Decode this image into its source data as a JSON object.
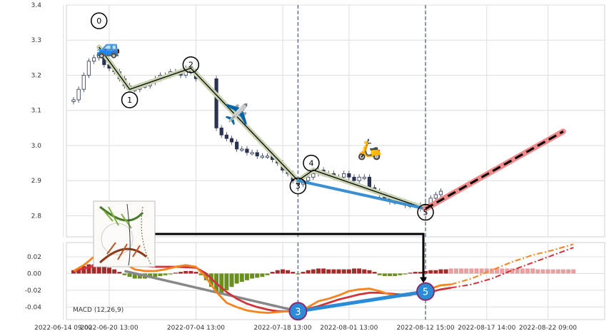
{
  "chart_data": [
    {
      "type": "candlestick",
      "panel": "price",
      "ylim": [
        2.74,
        3.4
      ],
      "y_ticks": [
        "3.4",
        "3.3",
        "3.2",
        "3.1",
        "3.0",
        "2.9",
        "2.8"
      ],
      "y_tick_values": [
        3.4,
        3.3,
        3.2,
        3.1,
        3.0,
        2.9,
        2.8
      ],
      "grid": true,
      "candles": [
        {
          "t": 0,
          "c": 3.13
        },
        {
          "t": 0.5,
          "c": 3.16
        },
        {
          "t": 1,
          "c": 3.2
        },
        {
          "t": 1.5,
          "c": 3.24
        },
        {
          "t": 2,
          "c": 3.25
        },
        {
          "t": 2.5,
          "c": 3.27
        },
        {
          "t": 3,
          "c": 3.23
        },
        {
          "t": 3.5,
          "c": 3.22
        },
        {
          "t": 4,
          "c": 3.21
        },
        {
          "t": 4.5,
          "c": 3.19
        },
        {
          "t": 5,
          "c": 3.17
        },
        {
          "t": 5.5,
          "c": 3.16
        },
        {
          "t": 6,
          "c": 3.16
        },
        {
          "t": 6.5,
          "c": 3.17
        },
        {
          "t": 7,
          "c": 3.17
        },
        {
          "t": 7.5,
          "c": 3.18
        },
        {
          "t": 8,
          "c": 3.19
        },
        {
          "t": 8.5,
          "c": 3.2
        },
        {
          "t": 9,
          "c": 3.2
        },
        {
          "t": 9.5,
          "c": 3.21
        },
        {
          "t": 10,
          "c": 3.21
        },
        {
          "t": 10.5,
          "c": 3.2
        },
        {
          "t": 11,
          "c": 3.22
        },
        {
          "t": 11.5,
          "c": 3.21
        },
        {
          "t": 12,
          "c": 3.19
        },
        {
          "t": 12.5,
          "c": 3.19
        },
        {
          "t": 14,
          "c": 3.05
        },
        {
          "t": 14.5,
          "c": 3.03
        },
        {
          "t": 15,
          "c": 3.02
        },
        {
          "t": 15.5,
          "c": 3.01
        },
        {
          "t": 16,
          "c": 2.99
        },
        {
          "t": 16.5,
          "c": 2.99
        },
        {
          "t": 17,
          "c": 2.98
        },
        {
          "t": 17.5,
          "c": 2.98
        },
        {
          "t": 18,
          "c": 2.97
        },
        {
          "t": 18.5,
          "c": 2.97
        },
        {
          "t": 19,
          "c": 2.97
        },
        {
          "t": 19.5,
          "c": 2.96
        },
        {
          "t": 20,
          "c": 2.95
        },
        {
          "t": 20.5,
          "c": 2.93
        },
        {
          "t": 21,
          "c": 2.92
        },
        {
          "t": 21.5,
          "c": 2.9
        },
        {
          "t": 22,
          "c": 2.89
        },
        {
          "t": 22.5,
          "c": 2.9
        },
        {
          "t": 23,
          "c": 2.91
        },
        {
          "t": 23.5,
          "c": 2.92
        },
        {
          "t": 24,
          "c": 2.93
        },
        {
          "t": 24.5,
          "c": 2.92
        },
        {
          "t": 25,
          "c": 2.92
        },
        {
          "t": 25.5,
          "c": 2.91
        },
        {
          "t": 26,
          "c": 2.91
        },
        {
          "t": 26.5,
          "c": 2.92
        },
        {
          "t": 27,
          "c": 2.91
        },
        {
          "t": 27.5,
          "c": 2.9
        },
        {
          "t": 28,
          "c": 2.91
        },
        {
          "t": 28.5,
          "c": 2.91
        },
        {
          "t": 29,
          "c": 2.88
        },
        {
          "t": 29.5,
          "c": 2.87
        },
        {
          "t": 30,
          "c": 2.86
        },
        {
          "t": 30.5,
          "c": 2.85
        },
        {
          "t": 31,
          "c": 2.84
        },
        {
          "t": 31.5,
          "c": 2.84
        },
        {
          "t": 32,
          "c": 2.84
        },
        {
          "t": 32.5,
          "c": 2.83
        },
        {
          "t": 33,
          "c": 2.83
        },
        {
          "t": 33.5,
          "c": 2.83
        },
        {
          "t": 34,
          "c": 2.82
        },
        {
          "t": 34.5,
          "c": 2.83
        },
        {
          "t": 35,
          "c": 2.85
        },
        {
          "t": 35.5,
          "c": 2.86
        },
        {
          "t": 36,
          "c": 2.87
        }
      ],
      "wave_points": [
        {
          "label": "0",
          "t": 2.5,
          "y": 3.28
        },
        {
          "label": "1",
          "t": 5.5,
          "y": 3.16
        },
        {
          "label": "2",
          "t": 11.5,
          "y": 3.22
        },
        {
          "label": "3",
          "t": 22,
          "y": 2.9
        },
        {
          "label": "4",
          "t": 23.5,
          "y": 2.93
        },
        {
          "label": "5",
          "t": 34.5,
          "y": 2.82
        }
      ],
      "wave_label_positions": [
        {
          "label": "0",
          "t": 2.5,
          "y": 3.355
        },
        {
          "label": "1",
          "t": 5.5,
          "y": 3.13
        },
        {
          "label": "2",
          "t": 11.5,
          "y": 3.23
        },
        {
          "label": "3",
          "t": 22,
          "y": 2.885
        },
        {
          "label": "4",
          "t": 23.3,
          "y": 2.95
        },
        {
          "label": "5",
          "t": 34.5,
          "y": 2.81
        }
      ],
      "trend_3_5": [
        {
          "t": 22,
          "y": 2.9
        },
        {
          "t": 34.5,
          "y": 2.82
        }
      ],
      "projection": [
        {
          "t": 34.5,
          "y": 2.82
        },
        {
          "t": 48,
          "y": 3.04
        }
      ],
      "vlines_t": [
        22,
        34.5
      ],
      "icons": [
        {
          "name": "car-icon",
          "glyph": "🚙",
          "t": 3.4,
          "y": 3.26
        },
        {
          "name": "airplane-icon",
          "glyph": "✈️",
          "t": 16,
          "y": 3.07
        },
        {
          "name": "scooter-icon",
          "glyph": "🛵",
          "t": 29,
          "y": 2.97
        }
      ],
      "colors": {
        "wave_line": "#000000",
        "wave_halo": "#c8d3b0",
        "trend": "#3a8fd3",
        "projection_halo": "#f08a8a",
        "projection_line": "#000000",
        "candle_up": "#ffffff",
        "candle_down": "#2a3350"
      }
    },
    {
      "type": "macd",
      "panel": "indicator",
      "legend": "MACD (12,26,9)",
      "ylim": [
        -0.055,
        0.037
      ],
      "y_ticks": [
        "0.02",
        "0.00",
        "-0.02",
        "-0.04"
      ],
      "y_tick_values": [
        0.02,
        0.0,
        -0.02,
        -0.04
      ],
      "x_ticks": [
        "2022-06-14 09:00",
        "2022-06-20 13:00",
        "2022-07-04 13:00",
        "2022-07-18 13:00",
        "2022-08-01 13:00",
        "2022-08-12 15:00",
        "2022-08-17 14:00",
        "2022-08-22 09:00"
      ],
      "x_tick_t": [
        -1,
        3.5,
        12,
        20.5,
        27,
        34.5,
        40.5,
        46.5
      ],
      "macd_line": [
        {
          "t": 0,
          "y": 0.003
        },
        {
          "t": 1,
          "y": 0.01
        },
        {
          "t": 2,
          "y": 0.02
        },
        {
          "t": 3,
          "y": 0.023
        },
        {
          "t": 4,
          "y": 0.02
        },
        {
          "t": 5,
          "y": 0.012
        },
        {
          "t": 6,
          "y": 0.005
        },
        {
          "t": 7,
          "y": 0.003
        },
        {
          "t": 8,
          "y": 0.003
        },
        {
          "t": 9,
          "y": 0.005
        },
        {
          "t": 10,
          "y": 0.008
        },
        {
          "t": 11,
          "y": 0.01
        },
        {
          "t": 12,
          "y": 0.008
        },
        {
          "t": 13,
          "y": -0.005
        },
        {
          "t": 14,
          "y": -0.022
        },
        {
          "t": 15,
          "y": -0.035
        },
        {
          "t": 16,
          "y": -0.04
        },
        {
          "t": 17,
          "y": -0.044
        },
        {
          "t": 18,
          "y": -0.046
        },
        {
          "t": 19,
          "y": -0.047
        },
        {
          "t": 20,
          "y": -0.046
        },
        {
          "t": 21,
          "y": -0.045
        },
        {
          "t": 22,
          "y": -0.045
        },
        {
          "t": 23,
          "y": -0.04
        },
        {
          "t": 24,
          "y": -0.033
        },
        {
          "t": 25,
          "y": -0.03
        },
        {
          "t": 26,
          "y": -0.026
        },
        {
          "t": 27,
          "y": -0.021
        },
        {
          "t": 28,
          "y": -0.019
        },
        {
          "t": 29,
          "y": -0.018
        },
        {
          "t": 30,
          "y": -0.021
        },
        {
          "t": 31,
          "y": -0.025
        },
        {
          "t": 32,
          "y": -0.027
        },
        {
          "t": 33,
          "y": -0.026
        },
        {
          "t": 34,
          "y": -0.022
        },
        {
          "t": 35,
          "y": -0.018
        },
        {
          "t": 36,
          "y": -0.014
        },
        {
          "t": 37,
          "y": -0.013
        }
      ],
      "signal_line": [
        {
          "t": 0,
          "y": 0.003
        },
        {
          "t": 2,
          "y": 0.009
        },
        {
          "t": 4,
          "y": 0.012
        },
        {
          "t": 6,
          "y": 0.01
        },
        {
          "t": 8,
          "y": 0.008
        },
        {
          "t": 10,
          "y": 0.008
        },
        {
          "t": 12,
          "y": 0.007
        },
        {
          "t": 13,
          "y": 0.0
        },
        {
          "t": 14,
          "y": -0.012
        },
        {
          "t": 15,
          "y": -0.022
        },
        {
          "t": 16,
          "y": -0.03
        },
        {
          "t": 17,
          "y": -0.036
        },
        {
          "t": 18,
          "y": -0.04
        },
        {
          "t": 19,
          "y": -0.043
        },
        {
          "t": 20,
          "y": -0.045
        },
        {
          "t": 21,
          "y": -0.045
        },
        {
          "t": 22,
          "y": -0.044
        },
        {
          "t": 23,
          "y": -0.042
        },
        {
          "t": 24,
          "y": -0.039
        },
        {
          "t": 25,
          "y": -0.035
        },
        {
          "t": 26,
          "y": -0.031
        },
        {
          "t": 27,
          "y": -0.028
        },
        {
          "t": 28,
          "y": -0.025
        },
        {
          "t": 29,
          "y": -0.023
        },
        {
          "t": 30,
          "y": -0.023
        },
        {
          "t": 31,
          "y": -0.024
        },
        {
          "t": 32,
          "y": -0.025
        },
        {
          "t": 33,
          "y": -0.025
        },
        {
          "t": 34,
          "y": -0.024
        },
        {
          "t": 35,
          "y": -0.022
        },
        {
          "t": 36,
          "y": -0.019
        },
        {
          "t": 37,
          "y": -0.017
        }
      ],
      "macd_projection": [
        {
          "t": 37,
          "y": -0.013
        },
        {
          "t": 39,
          "y": -0.006
        },
        {
          "t": 41,
          "y": 0.004
        },
        {
          "t": 43,
          "y": 0.014
        },
        {
          "t": 45,
          "y": 0.022
        },
        {
          "t": 47,
          "y": 0.028
        },
        {
          "t": 49,
          "y": 0.035
        }
      ],
      "signal_projection": [
        {
          "t": 37,
          "y": -0.017
        },
        {
          "t": 39,
          "y": -0.013
        },
        {
          "t": 41,
          "y": -0.006
        },
        {
          "t": 43,
          "y": 0.004
        },
        {
          "t": 45,
          "y": 0.013
        },
        {
          "t": 47,
          "y": 0.022
        },
        {
          "t": 49,
          "y": 0.031
        }
      ],
      "histogram": [
        {
          "t": 0,
          "v": 0.004
        },
        {
          "t": 0.5,
          "v": 0.006
        },
        {
          "t": 1,
          "v": 0.009
        },
        {
          "t": 1.5,
          "v": 0.011
        },
        {
          "t": 2,
          "v": 0.011
        },
        {
          "t": 2.5,
          "v": 0.01
        },
        {
          "t": 3,
          "v": 0.009
        },
        {
          "t": 3.5,
          "v": 0.007
        },
        {
          "t": 4,
          "v": 0.005
        },
        {
          "t": 4.5,
          "v": 0.002
        },
        {
          "t": 5,
          "v": -0.002
        },
        {
          "t": 5.5,
          "v": -0.004
        },
        {
          "t": 6,
          "v": -0.006
        },
        {
          "t": 6.5,
          "v": -0.006
        },
        {
          "t": 7,
          "v": -0.006
        },
        {
          "t": 7.5,
          "v": -0.005
        },
        {
          "t": 8,
          "v": -0.004
        },
        {
          "t": 8.5,
          "v": -0.003
        },
        {
          "t": 9,
          "v": -0.002
        },
        {
          "t": 9.5,
          "v": -0.001
        },
        {
          "t": 10,
          "v": 0.001
        },
        {
          "t": 10.5,
          "v": 0.002
        },
        {
          "t": 11,
          "v": 0.003
        },
        {
          "t": 11.5,
          "v": 0.003
        },
        {
          "t": 12,
          "v": 0.002
        },
        {
          "t": 12.5,
          "v": -0.002
        },
        {
          "t": 13,
          "v": -0.008
        },
        {
          "t": 13.5,
          "v": -0.016
        },
        {
          "t": 14,
          "v": -0.022
        },
        {
          "t": 14.5,
          "v": -0.024
        },
        {
          "t": 15,
          "v": -0.02
        },
        {
          "t": 15.5,
          "v": -0.016
        },
        {
          "t": 16,
          "v": -0.012
        },
        {
          "t": 16.5,
          "v": -0.01
        },
        {
          "t": 17,
          "v": -0.008
        },
        {
          "t": 17.5,
          "v": -0.006
        },
        {
          "t": 18,
          "v": -0.005
        },
        {
          "t": 18.5,
          "v": -0.004
        },
        {
          "t": 19,
          "v": -0.002
        },
        {
          "t": 19.5,
          "v": 0.002
        },
        {
          "t": 20,
          "v": 0.004
        },
        {
          "t": 20.5,
          "v": 0.005
        },
        {
          "t": 21,
          "v": 0.004
        },
        {
          "t": 21.5,
          "v": 0.002
        },
        {
          "t": 22,
          "v": -0.001
        },
        {
          "t": 22.5,
          "v": 0.002
        },
        {
          "t": 23,
          "v": 0.004
        },
        {
          "t": 23.5,
          "v": 0.005
        },
        {
          "t": 24,
          "v": 0.006
        },
        {
          "t": 24.5,
          "v": 0.006
        },
        {
          "t": 25,
          "v": 0.005
        },
        {
          "t": 25.5,
          "v": 0.005
        },
        {
          "t": 26,
          "v": 0.005
        },
        {
          "t": 26.5,
          "v": 0.005
        },
        {
          "t": 27,
          "v": 0.005
        },
        {
          "t": 27.5,
          "v": 0.006
        },
        {
          "t": 28,
          "v": 0.006
        },
        {
          "t": 28.5,
          "v": 0.005
        },
        {
          "t": 29,
          "v": 0.004
        },
        {
          "t": 29.5,
          "v": 0.002
        },
        {
          "t": 30,
          "v": -0.002
        },
        {
          "t": 30.5,
          "v": -0.003
        },
        {
          "t": 31,
          "v": -0.003
        },
        {
          "t": 31.5,
          "v": -0.003
        },
        {
          "t": 32,
          "v": -0.002
        },
        {
          "t": 32.5,
          "v": -0.001
        },
        {
          "t": 33,
          "v": 0.001
        },
        {
          "t": 33.5,
          "v": 0.002
        },
        {
          "t": 34,
          "v": 0.002
        },
        {
          "t": 34.5,
          "v": 0.003
        },
        {
          "t": 35,
          "v": 0.004
        },
        {
          "t": 35.5,
          "v": 0.004
        },
        {
          "t": 36,
          "v": 0.005
        },
        {
          "t": 36.5,
          "v": 0.005
        }
      ],
      "histogram_projection": [
        {
          "t": 37,
          "v": 0.006
        },
        {
          "t": 37.5,
          "v": 0.006
        },
        {
          "t": 38,
          "v": 0.006
        },
        {
          "t": 38.5,
          "v": 0.006
        },
        {
          "t": 39,
          "v": 0.006
        },
        {
          "t": 39.5,
          "v": 0.006
        },
        {
          "t": 40,
          "v": 0.006
        },
        {
          "t": 40.5,
          "v": 0.006
        },
        {
          "t": 41,
          "v": 0.006
        },
        {
          "t": 41.5,
          "v": 0.006
        },
        {
          "t": 42,
          "v": 0.006
        },
        {
          "t": 42.5,
          "v": 0.006
        },
        {
          "t": 43,
          "v": 0.006
        },
        {
          "t": 43.5,
          "v": 0.006
        },
        {
          "t": 44,
          "v": 0.006
        },
        {
          "t": 44.5,
          "v": 0.006
        },
        {
          "t": 45,
          "v": 0.006
        },
        {
          "t": 45.5,
          "v": 0.005
        },
        {
          "t": 46,
          "v": 0.005
        },
        {
          "t": 46.5,
          "v": 0.005
        },
        {
          "t": 47,
          "v": 0.005
        },
        {
          "t": 47.5,
          "v": 0.005
        },
        {
          "t": 48,
          "v": 0.005
        },
        {
          "t": 48.5,
          "v": 0.005
        },
        {
          "t": 49,
          "v": 0.005
        }
      ],
      "wave_markers": [
        {
          "label": "3",
          "t": 22,
          "y": -0.045
        },
        {
          "label": "5",
          "t": 34.5,
          "y": -0.0215
        }
      ],
      "gray_line": [
        {
          "t": 5,
          "y": 0.003
        },
        {
          "t": 22,
          "y": -0.045
        }
      ],
      "colors": {
        "macd": "#f5841f",
        "signal": "#d0343a",
        "hist_pos": "#a52a2a",
        "hist_neg": "#6b8e23",
        "hist_projection": "#e6a0a0",
        "gray": "#888888",
        "marker_fill": "#2a8bd8",
        "marker_ring": "#8a2a6a"
      }
    }
  ]
}
